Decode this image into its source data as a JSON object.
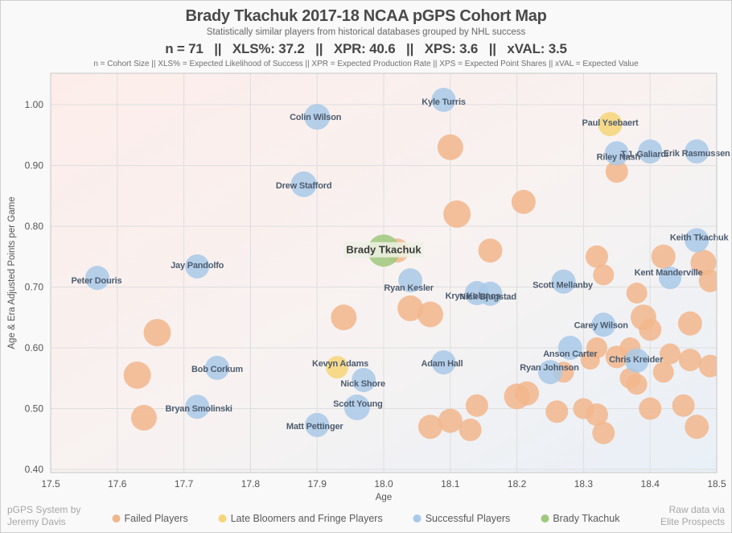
{
  "header": {
    "title": "Brady Tkachuk 2017-18 NCAA pGPS Cohort Map",
    "subtitle": "Statistically similar players from historical databases grouped by NHL success",
    "stats_line": "n = 71   ||   XLS%: 37.2   ||   XPR: 40.6   ||   XPS: 3.6   ||   xVAL: 3.5",
    "definitions_line": "n = Cohort Size || XLS% = Expected Likelihood of Success || XPR = Expected Production Rate || XPS = Expected Point Shares || xVAL = Expected Value"
  },
  "footer": {
    "credit_left_line1": "pGPS System by",
    "credit_left_line2": "Jeremy Davis",
    "credit_right_line1": "Raw data via",
    "credit_right_line2": "Elite Prospects",
    "legend": [
      {
        "label": "Failed Players",
        "color": "#f2b68c"
      },
      {
        "label": "Late Bloomers and Fringe Players",
        "color": "#f6d678"
      },
      {
        "label": "Successful Players",
        "color": "#a9c9e8"
      },
      {
        "label": "Brady Tkachuk",
        "color": "#9fc87c"
      }
    ]
  },
  "chart_data": {
    "type": "scatter",
    "title": "Brady Tkachuk 2017-18 NCAA pGPS Cohort Map",
    "xlabel": "Age",
    "ylabel": "Age & Era Adjusted Points per Game",
    "xlim": [
      17.5,
      18.5
    ],
    "ylim": [
      0.395,
      1.05
    ],
    "x_ticks": [
      "17.5",
      "17.6",
      "17.7",
      "17.8",
      "17.9",
      "18.0",
      "18.1",
      "18.2",
      "18.3",
      "18.4",
      "18.5"
    ],
    "y_ticks": [
      "1.00",
      "0.90",
      "0.80",
      "0.70",
      "0.60",
      "0.50",
      "0.40"
    ],
    "grid": true,
    "legend_position": "bottom",
    "colors": {
      "plot_bg_top_left": "#fcedea",
      "plot_bg_bottom_right": "#e8f0f7",
      "gridline": "#dedede",
      "border": "#c6c6c6"
    },
    "series": [
      {
        "name": "Failed Players",
        "color": "#f2b68c",
        "points": [
          {
            "x": 18.1,
            "y": 0.93,
            "r": 16
          },
          {
            "x": 18.11,
            "y": 0.82,
            "r": 17
          },
          {
            "x": 18.21,
            "y": 0.84,
            "r": 15
          },
          {
            "x": 18.16,
            "y": 0.76,
            "r": 15
          },
          {
            "x": 18.32,
            "y": 0.75,
            "r": 14
          },
          {
            "x": 18.35,
            "y": 0.89,
            "r": 14
          },
          {
            "x": 18.42,
            "y": 0.75,
            "r": 15
          },
          {
            "x": 18.48,
            "y": 0.74,
            "r": 16
          },
          {
            "x": 18.49,
            "y": 0.71,
            "r": 14
          },
          {
            "x": 18.33,
            "y": 0.72,
            "r": 13
          },
          {
            "x": 18.38,
            "y": 0.69,
            "r": 13
          },
          {
            "x": 18.02,
            "y": 0.76,
            "r": 15
          },
          {
            "x": 18.04,
            "y": 0.665,
            "r": 16
          },
          {
            "x": 18.07,
            "y": 0.655,
            "r": 16
          },
          {
            "x": 17.94,
            "y": 0.65,
            "r": 16
          },
          {
            "x": 17.66,
            "y": 0.625,
            "r": 17
          },
          {
            "x": 17.63,
            "y": 0.555,
            "r": 17
          },
          {
            "x": 17.64,
            "y": 0.485,
            "r": 16
          },
          {
            "x": 18.39,
            "y": 0.65,
            "r": 16
          },
          {
            "x": 18.4,
            "y": 0.63,
            "r": 14
          },
          {
            "x": 18.46,
            "y": 0.64,
            "r": 15
          },
          {
            "x": 18.32,
            "y": 0.6,
            "r": 13
          },
          {
            "x": 18.37,
            "y": 0.6,
            "r": 13
          },
          {
            "x": 18.43,
            "y": 0.59,
            "r": 13
          },
          {
            "x": 18.46,
            "y": 0.58,
            "r": 14
          },
          {
            "x": 18.49,
            "y": 0.57,
            "r": 14
          },
          {
            "x": 18.42,
            "y": 0.56,
            "r": 13
          },
          {
            "x": 18.35,
            "y": 0.585,
            "r": 14
          },
          {
            "x": 18.27,
            "y": 0.56,
            "r": 13
          },
          {
            "x": 18.31,
            "y": 0.58,
            "r": 12
          },
          {
            "x": 18.37,
            "y": 0.55,
            "r": 13
          },
          {
            "x": 18.38,
            "y": 0.54,
            "r": 13
          },
          {
            "x": 18.4,
            "y": 0.5,
            "r": 14
          },
          {
            "x": 18.45,
            "y": 0.505,
            "r": 14
          },
          {
            "x": 18.47,
            "y": 0.47,
            "r": 15
          },
          {
            "x": 18.33,
            "y": 0.46,
            "r": 14
          },
          {
            "x": 18.32,
            "y": 0.49,
            "r": 14
          },
          {
            "x": 18.3,
            "y": 0.5,
            "r": 13
          },
          {
            "x": 18.26,
            "y": 0.495,
            "r": 14
          },
          {
            "x": 18.2,
            "y": 0.52,
            "r": 16
          },
          {
            "x": 18.215,
            "y": 0.525,
            "r": 15
          },
          {
            "x": 18.14,
            "y": 0.505,
            "r": 14
          },
          {
            "x": 18.13,
            "y": 0.465,
            "r": 14
          },
          {
            "x": 18.1,
            "y": 0.48,
            "r": 15
          },
          {
            "x": 18.07,
            "y": 0.47,
            "r": 15
          }
        ]
      },
      {
        "name": "Late Bloomers and Fringe Players",
        "color": "#f6d678",
        "points": [
          {
            "x": 18.34,
            "y": 0.968,
            "r": 15,
            "label": "Paul Ysebaert",
            "ldx": 0,
            "ldy": -2
          },
          {
            "x": 17.93,
            "y": 0.568,
            "r": 14,
            "label": "Kevyn Adams",
            "ldx": 4,
            "ldy": -5
          }
        ]
      },
      {
        "name": "Successful Players",
        "color": "#a9c9e8",
        "points": [
          {
            "x": 17.9,
            "y": 0.98,
            "r": 16,
            "label": "Colin Wilson",
            "ldx": -2,
            "ldy": 0
          },
          {
            "x": 18.09,
            "y": 1.008,
            "r": 15,
            "label": "Kyle Turris",
            "ldx": 0,
            "ldy": 2
          },
          {
            "x": 17.88,
            "y": 0.869,
            "r": 16,
            "label": "Drew Stafford",
            "ldx": 0,
            "ldy": 1
          },
          {
            "x": 17.72,
            "y": 0.734,
            "r": 15,
            "label": "Jay Pandolfo",
            "ldx": 0,
            "ldy": -2
          },
          {
            "x": 17.57,
            "y": 0.715,
            "r": 15,
            "label": "Peter Douris",
            "ldx": -1,
            "ldy": 3
          },
          {
            "x": 17.75,
            "y": 0.567,
            "r": 15,
            "label": "Bob Corkum",
            "ldx": 0,
            "ldy": 1
          },
          {
            "x": 17.72,
            "y": 0.503,
            "r": 15,
            "label": "Bryan Smolinski",
            "ldx": 2,
            "ldy": 2
          },
          {
            "x": 17.9,
            "y": 0.473,
            "r": 15,
            "label": "Matt Pettinger",
            "ldx": -3,
            "ldy": 1
          },
          {
            "x": 17.97,
            "y": 0.547,
            "r": 15,
            "label": "Nick Shore",
            "ldx": -1,
            "ldy": 4
          },
          {
            "x": 17.96,
            "y": 0.502,
            "r": 16,
            "label": "Scott Young",
            "ldx": 1,
            "ldy": -5
          },
          {
            "x": 18.04,
            "y": 0.711,
            "r": 15,
            "label": "Ryan Kesler",
            "ldx": -2,
            "ldy": 9
          },
          {
            "x": 18.09,
            "y": 0.576,
            "r": 15,
            "label": "Adam Hall",
            "ldx": -2,
            "ldy": 1
          },
          {
            "x": 18.14,
            "y": 0.69,
            "r": 15,
            "label": "Krys Kolanos",
            "ldx": -5,
            "ldy": 3
          },
          {
            "x": 18.16,
            "y": 0.689,
            "r": 15,
            "label": "Nick Bjugstad",
            "ldx": -3,
            "ldy": 3
          },
          {
            "x": 18.27,
            "y": 0.709,
            "r": 15,
            "label": "Scott Mellanby",
            "ldx": -1,
            "ldy": 4
          },
          {
            "x": 18.43,
            "y": 0.715,
            "r": 14,
            "label": "Kent Manderville",
            "ldx": -2,
            "ldy": -7
          },
          {
            "x": 18.33,
            "y": 0.638,
            "r": 15,
            "label": "Carey Wilson",
            "ldx": -3,
            "ldy": 0
          },
          {
            "x": 18.28,
            "y": 0.6,
            "r": 15,
            "label": "Anson Carter",
            "ldx": 0,
            "ldy": 7
          },
          {
            "x": 18.25,
            "y": 0.56,
            "r": 15,
            "label": "Ryan Johnson",
            "ldx": -1,
            "ldy": -6
          },
          {
            "x": 18.38,
            "y": 0.579,
            "r": 15,
            "label": "Chris Kreider",
            "ldx": -1,
            "ldy": -2
          },
          {
            "x": 18.35,
            "y": 0.92,
            "r": 15,
            "label": "Riley Nash",
            "ldx": 2,
            "ldy": 4
          },
          {
            "x": 18.4,
            "y": 0.923,
            "r": 15,
            "label": "T.J. Galiardi",
            "ldx": -7,
            "ldy": 3
          },
          {
            "x": 18.47,
            "y": 0.923,
            "r": 15,
            "label": "Erik Rasmussen",
            "ldx": 0,
            "ldy": 2
          },
          {
            "x": 18.47,
            "y": 0.777,
            "r": 15,
            "label": "Keith Tkachuk",
            "ldx": 3,
            "ldy": -4
          }
        ]
      },
      {
        "name": "Brady Tkachuk",
        "color": "#9fc87c",
        "points": [
          {
            "x": 18.0,
            "y": 0.76,
            "r": 20,
            "label": "Brady Tkachuk",
            "highlight": true
          }
        ]
      }
    ]
  }
}
